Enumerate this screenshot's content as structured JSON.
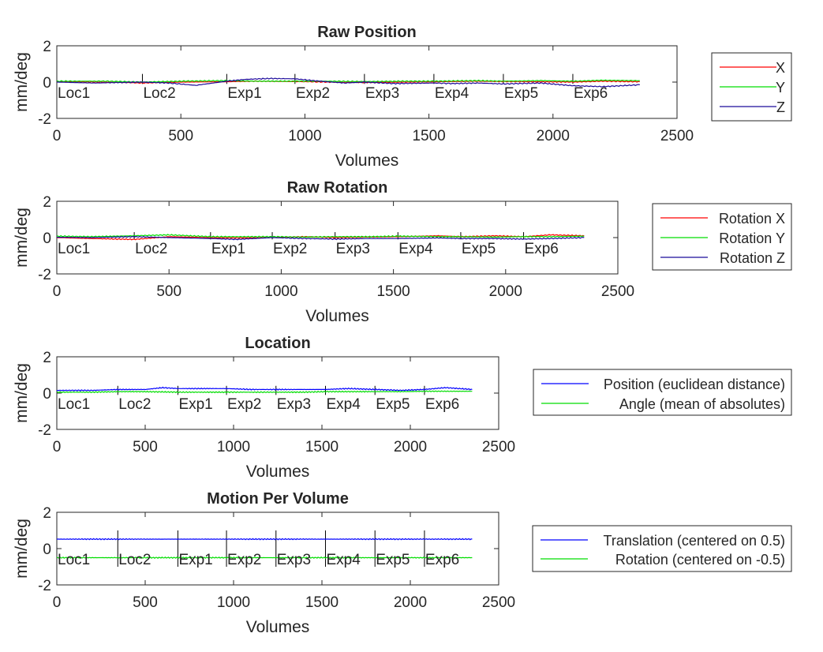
{
  "chart_data": [
    {
      "type": "line",
      "title": "Raw Position",
      "xlabel": "Volumes",
      "ylabel": "mm/deg",
      "xlim": [
        0,
        2500
      ],
      "ylim": [
        -2,
        2
      ],
      "xticks": [
        "0",
        "500",
        "1000",
        "1500",
        "2000",
        "2500"
      ],
      "yticks": [
        "-2",
        "0",
        "2"
      ],
      "legend_position": "right",
      "grid": false,
      "run_boundaries": [
        0,
        345,
        685,
        960,
        1240,
        1520,
        1800,
        2080
      ],
      "run_labels": [
        "Loc1",
        "Loc2",
        "Exp1",
        "Exp2",
        "Exp3",
        "Exp4",
        "Exp5",
        "Exp6"
      ],
      "marker_range": [
        -0.1,
        0.45
      ],
      "series": [
        {
          "name": "X",
          "color": "#ff0000",
          "x": [
            0,
            200,
            345,
            500,
            685,
            800,
            960,
            1100,
            1240,
            1400,
            1520,
            1700,
            1800,
            1950,
            2080,
            2200,
            2350
          ],
          "values": [
            0.02,
            0.0,
            -0.05,
            0.0,
            0.02,
            0.05,
            0.03,
            0.0,
            -0.02,
            0.0,
            0.02,
            0.05,
            0.03,
            0.02,
            0.0,
            0.05,
            0.02
          ]
        },
        {
          "name": "Y",
          "color": "#00dd00",
          "x": [
            0,
            200,
            345,
            500,
            685,
            800,
            960,
            1100,
            1240,
            1400,
            1520,
            1700,
            1800,
            1950,
            2080,
            2200,
            2350
          ],
          "values": [
            0.05,
            0.05,
            0.0,
            0.05,
            0.08,
            0.05,
            0.05,
            0.05,
            0.03,
            0.05,
            0.05,
            0.08,
            0.05,
            0.08,
            0.05,
            0.1,
            0.08
          ]
        },
        {
          "name": "Z",
          "color": "#1a0a9a",
          "x": [
            0,
            150,
            345,
            450,
            560,
            685,
            760,
            860,
            960,
            1060,
            1160,
            1240,
            1360,
            1520,
            1600,
            1700,
            1800,
            1950,
            2080,
            2200,
            2350
          ],
          "values": [
            0.0,
            -0.05,
            0.0,
            -0.05,
            -0.18,
            0.05,
            0.15,
            0.2,
            0.18,
            0.05,
            -0.05,
            0.0,
            -0.08,
            -0.05,
            -0.08,
            -0.05,
            -0.1,
            -0.05,
            -0.2,
            -0.25,
            -0.15
          ]
        }
      ]
    },
    {
      "type": "line",
      "title": "Raw Rotation",
      "xlabel": "Volumes",
      "ylabel": "mm/deg",
      "xlim": [
        0,
        2500
      ],
      "ylim": [
        -2,
        2
      ],
      "xticks": [
        "0",
        "500",
        "1000",
        "1500",
        "2000",
        "2500"
      ],
      "yticks": [
        "-2",
        "0",
        "2"
      ],
      "legend_position": "right",
      "grid": false,
      "run_boundaries": [
        0,
        345,
        685,
        960,
        1240,
        1520,
        1800,
        2080
      ],
      "run_labels": [
        "Loc1",
        "Loc2",
        "Exp1",
        "Exp2",
        "Exp3",
        "Exp4",
        "Exp5",
        "Exp6"
      ],
      "marker_range": [
        -0.1,
        0.3
      ],
      "series": [
        {
          "name": "Rotation X",
          "color": "#ff0000",
          "x": [
            0,
            150,
            345,
            500,
            685,
            800,
            960,
            1100,
            1240,
            1400,
            1520,
            1700,
            1800,
            1950,
            2080,
            2200,
            2350
          ],
          "values": [
            0.0,
            -0.05,
            -0.1,
            0.05,
            0.0,
            -0.02,
            0.0,
            0.05,
            0.0,
            0.03,
            0.05,
            0.1,
            0.05,
            0.1,
            0.05,
            0.15,
            0.1
          ]
        },
        {
          "name": "Rotation Y",
          "color": "#00dd00",
          "x": [
            0,
            150,
            345,
            500,
            685,
            800,
            960,
            1100,
            1240,
            1400,
            1520,
            1700,
            1800,
            1950,
            2080,
            2200,
            2350
          ],
          "values": [
            0.08,
            0.05,
            0.1,
            0.15,
            0.05,
            0.05,
            0.05,
            0.03,
            0.05,
            0.05,
            0.08,
            0.05,
            0.05,
            0.03,
            0.05,
            0.05,
            0.08
          ]
        },
        {
          "name": "Rotation Z",
          "color": "#1a0a9a",
          "x": [
            0,
            150,
            345,
            500,
            685,
            800,
            960,
            1100,
            1240,
            1400,
            1520,
            1700,
            1800,
            1950,
            2080,
            2200,
            2350
          ],
          "values": [
            0.02,
            0.0,
            0.05,
            0.0,
            -0.05,
            -0.1,
            0.0,
            -0.05,
            -0.08,
            -0.05,
            -0.05,
            -0.02,
            -0.05,
            -0.05,
            -0.08,
            -0.05,
            0.0
          ]
        }
      ]
    },
    {
      "type": "line",
      "title": "Location",
      "xlabel": "Volumes",
      "ylabel": "mm/deg",
      "xlim": [
        0,
        2500
      ],
      "ylim": [
        -2,
        2
      ],
      "xticks": [
        "0",
        "500",
        "1000",
        "1500",
        "2000",
        "2500"
      ],
      "yticks": [
        "-2",
        "0",
        "2"
      ],
      "legend_position": "right",
      "grid": false,
      "run_boundaries": [
        0,
        345,
        685,
        960,
        1240,
        1520,
        1800,
        2080
      ],
      "run_labels": [
        "Loc1",
        "Loc2",
        "Exp1",
        "Exp2",
        "Exp3",
        "Exp4",
        "Exp5",
        "Exp6"
      ],
      "marker_range": [
        -0.1,
        0.4
      ],
      "series": [
        {
          "name": "Position (euclidean distance)",
          "color": "#0000ff",
          "x": [
            0,
            200,
            345,
            500,
            600,
            685,
            800,
            960,
            1100,
            1240,
            1400,
            1520,
            1650,
            1800,
            1950,
            2080,
            2200,
            2350
          ],
          "values": [
            0.15,
            0.15,
            0.2,
            0.2,
            0.3,
            0.25,
            0.25,
            0.25,
            0.2,
            0.2,
            0.2,
            0.2,
            0.25,
            0.2,
            0.15,
            0.2,
            0.3,
            0.2
          ]
        },
        {
          "name": "Angle (mean of absolutes)",
          "color": "#00dd00",
          "x": [
            0,
            200,
            345,
            500,
            685,
            800,
            960,
            1100,
            1240,
            1400,
            1520,
            1700,
            1800,
            1950,
            2080,
            2200,
            2350
          ],
          "values": [
            0.05,
            0.05,
            0.08,
            0.08,
            0.05,
            0.05,
            0.05,
            0.05,
            0.05,
            0.05,
            0.08,
            0.08,
            0.08,
            0.08,
            0.1,
            0.1,
            0.1
          ]
        }
      ]
    },
    {
      "type": "line",
      "title": "Motion Per Volume",
      "xlabel": "Volumes",
      "ylabel": "mm/deg",
      "xlim": [
        0,
        2500
      ],
      "ylim": [
        -2,
        2
      ],
      "xticks": [
        "0",
        "500",
        "1000",
        "1500",
        "2000",
        "2500"
      ],
      "yticks": [
        "-2",
        "0",
        "2"
      ],
      "legend_position": "right",
      "grid": false,
      "run_boundaries": [
        0,
        345,
        685,
        960,
        1240,
        1520,
        1800,
        2080
      ],
      "run_labels": [
        "Loc1",
        "Loc2",
        "Exp1",
        "Exp2",
        "Exp3",
        "Exp4",
        "Exp5",
        "Exp6"
      ],
      "marker_range": [
        -1,
        1
      ],
      "series": [
        {
          "name": "Translation (centered on 0.5)",
          "color": "#0000ff",
          "x": [
            0,
            345,
            685,
            960,
            1240,
            1520,
            1800,
            2080,
            2350
          ],
          "values": [
            0.52,
            0.52,
            0.52,
            0.52,
            0.52,
            0.52,
            0.52,
            0.52,
            0.52
          ]
        },
        {
          "name": "Rotation (centered on -0.5)",
          "color": "#00dd00",
          "x": [
            0,
            345,
            685,
            960,
            1240,
            1520,
            1800,
            2080,
            2350
          ],
          "values": [
            -0.5,
            -0.5,
            -0.5,
            -0.5,
            -0.5,
            -0.5,
            -0.5,
            -0.5,
            -0.5
          ]
        }
      ]
    }
  ]
}
